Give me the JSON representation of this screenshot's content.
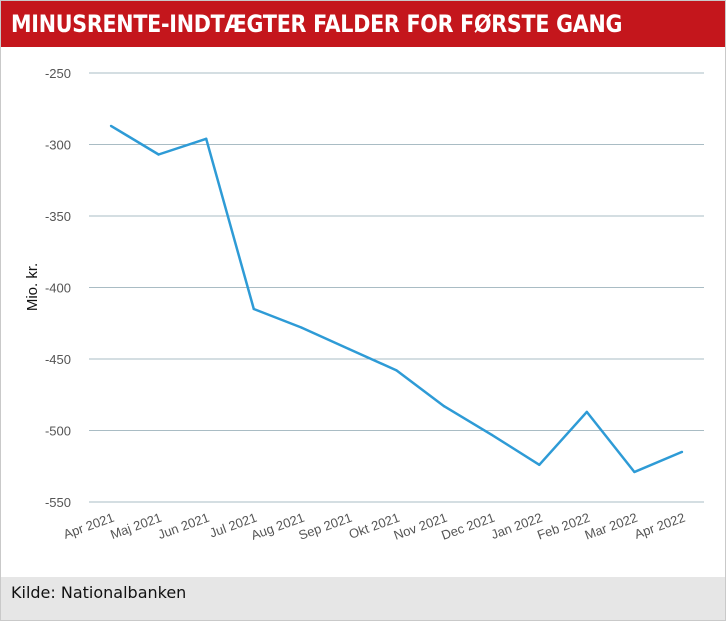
{
  "header": {
    "title": "MINUSRENTE-INDTÆGTER FALDER FOR FØRSTE GANG"
  },
  "footer": {
    "source": "Kilde: Nationalbanken"
  },
  "colors": {
    "header_bg": "#c4161c",
    "line": "#2e9bd6",
    "grid": "#a9bcc4",
    "footer_bg": "#e6e6e6"
  },
  "chart_data": {
    "type": "line",
    "title": "MINUSRENTE-INDTÆGTER FALDER FOR FØRSTE GANG",
    "xlabel": "",
    "ylabel": "Mio. kr.",
    "ylim": [
      -550,
      -250
    ],
    "yticks": [
      -250,
      -300,
      -350,
      -400,
      -450,
      -500,
      -550
    ],
    "grid": true,
    "legend": "none",
    "categories": [
      "Apr 2021",
      "Maj 2021",
      "Jun 2021",
      "Jul 2021",
      "Aug 2021",
      "Sep 2021",
      "Okt 2021",
      "Nov 2021",
      "Dec 2021",
      "Jan 2022",
      "Feb 2022",
      "Mar 2022",
      "Apr 2022"
    ],
    "series": [
      {
        "values": [
          -287,
          -307,
          -296,
          -415,
          -428,
          -443,
          -458,
          -483,
          -503,
          -524,
          -487,
          -529,
          -515
        ]
      }
    ]
  }
}
